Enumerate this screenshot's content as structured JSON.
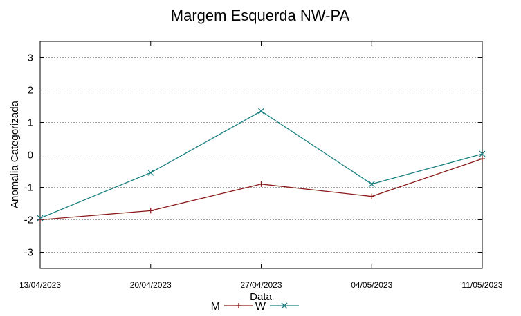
{
  "chart_data": {
    "type": "line",
    "title": "Margem Esquerda NW-PA",
    "xlabel": "Data",
    "ylabel": "Anomalia Categorizada",
    "categories": [
      "13/04/2023",
      "20/04/2023",
      "27/04/2023",
      "04/05/2023",
      "11/05/2023"
    ],
    "ylim": [
      -3.5,
      3.5
    ],
    "yticks": [
      3,
      2,
      1,
      0,
      -1,
      -2,
      -3
    ],
    "grid": true,
    "legend_position": "bottom-center",
    "series": [
      {
        "name": "M",
        "color": "#8b1a1a",
        "marker": "plus",
        "values": [
          -2.0,
          -1.72,
          -0.9,
          -1.28,
          -0.12
        ]
      },
      {
        "name": "W",
        "color": "#1a8080",
        "marker": "cross",
        "values": [
          -1.95,
          -0.55,
          1.35,
          -0.9,
          0.03
        ]
      }
    ]
  }
}
